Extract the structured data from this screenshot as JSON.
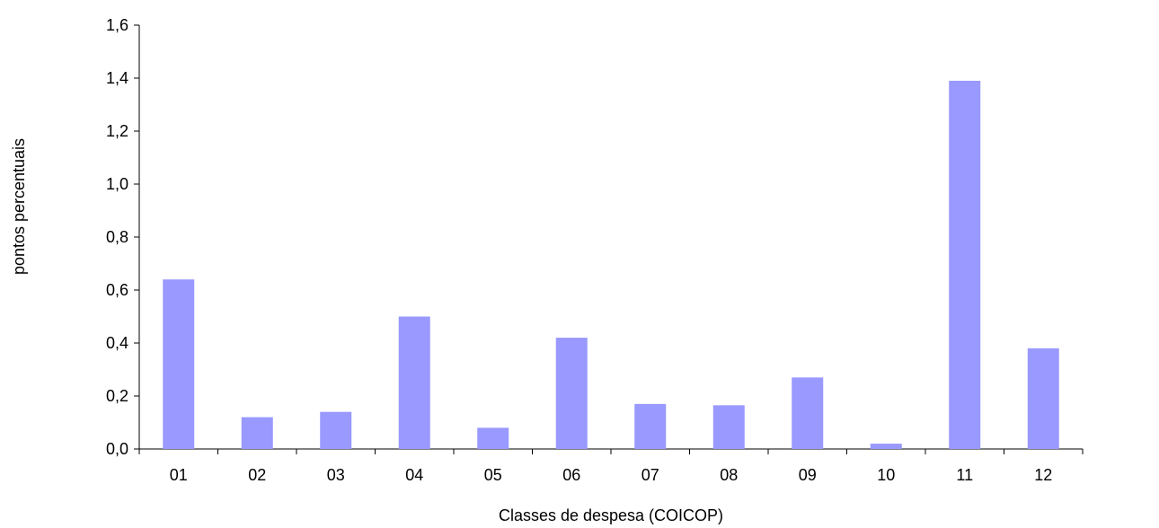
{
  "chart_data": {
    "type": "bar",
    "title": "",
    "xlabel": "Classes de despesa (COICOP)",
    "ylabel": "pontos percentuais",
    "categories": [
      "01",
      "02",
      "03",
      "04",
      "05",
      "06",
      "07",
      "08",
      "09",
      "10",
      "11",
      "12"
    ],
    "values": [
      0.64,
      0.12,
      0.14,
      0.5,
      0.08,
      0.42,
      0.17,
      0.165,
      0.27,
      0.02,
      1.39,
      0.38
    ],
    "ylim": [
      0,
      1.6
    ],
    "yticks": [
      "0,0",
      "0,2",
      "0,4",
      "0,6",
      "0,8",
      "1,0",
      "1,2",
      "1,4",
      "1,6"
    ],
    "grid": false,
    "legend": "none",
    "colors": {
      "bar": "#9999ff",
      "axis": "#000000"
    }
  }
}
